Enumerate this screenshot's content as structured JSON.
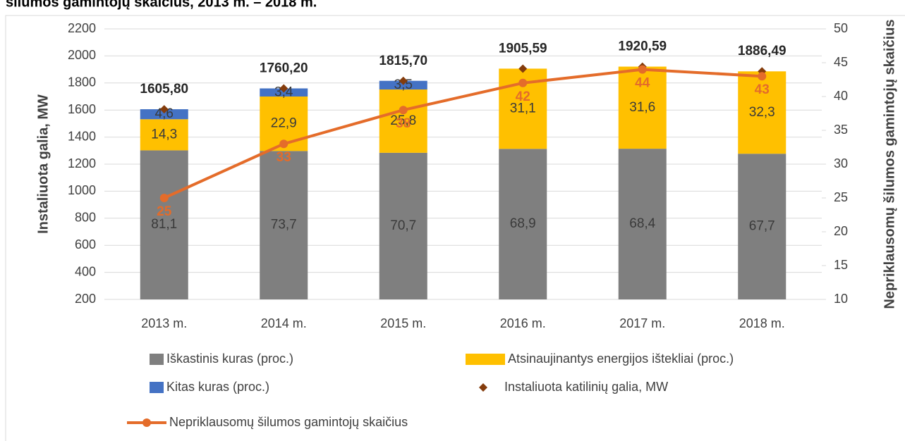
{
  "chart_data": {
    "type": "bar",
    "title": "šilumos gamintojų skaičius, 2013 m. – 2018 m.",
    "ylabel": "Instaliuota galia, MW",
    "y2label": "Nepriklausomų šilumos gamintojų skaičius",
    "categories": [
      "2013 m.",
      "2014 m.",
      "2015 m.",
      "2016 m.",
      "2017 m.",
      "2018 m."
    ],
    "ylim": [
      200,
      2200
    ],
    "yticks": [
      200,
      400,
      600,
      800,
      1000,
      1200,
      1400,
      1600,
      1800,
      2000,
      2200
    ],
    "y2lim": [
      10,
      50
    ],
    "y2ticks": [
      10,
      15,
      20,
      25,
      30,
      35,
      40,
      45,
      50
    ],
    "series": [
      {
        "name": "Iškastinis kuras (proc.)",
        "color": "#7f7f7f",
        "values": [
          1302,
          1297,
          1284,
          1313,
          1314,
          1277
        ],
        "labels": [
          "81,1",
          "73,7",
          "70,7",
          "68,9",
          "68,4",
          "67,7"
        ]
      },
      {
        "name": "Atsinaujinantys energijos ištekliai (proc.)",
        "color": "#ffc000",
        "values": [
          230,
          403,
          468,
          593,
          607,
          609
        ],
        "labels": [
          "14,3",
          "22,9",
          "25,8",
          "31,1",
          "31,6",
          "32,3"
        ]
      },
      {
        "name": "Kitas kuras (proc.)",
        "color": "#4472c4",
        "values": [
          74,
          60,
          64,
          0,
          0,
          0
        ],
        "labels": [
          "4,6",
          "3,4",
          "3,5",
          null,
          null,
          null
        ]
      },
      {
        "name": "Instaliuota katilinių galia, MW",
        "color": "#843c0c",
        "kind": "diamond",
        "values": [
          1605.8,
          1760.2,
          1815.7,
          1905.59,
          1920.59,
          1886.49
        ],
        "value_labels": [
          "1605,80",
          "1760,20",
          "1815,70",
          "1905,59",
          "1920,59",
          "1886,49"
        ]
      },
      {
        "name": "Nepriklausomų šilumos gamintojų skaičius",
        "color": "#e46c2a",
        "kind": "line",
        "axis": "y2",
        "values": [
          25,
          33,
          38,
          42,
          44,
          43
        ]
      }
    ]
  }
}
